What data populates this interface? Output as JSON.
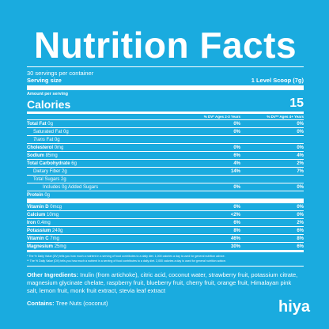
{
  "title": "Nutrition Facts",
  "servings_per_container": "30 servings per container",
  "serving_size_label": "Serving size",
  "serving_size_value": "1 Level Scoop (7g)",
  "amount_per_serving": "Amount per serving",
  "calories_label": "Calories",
  "calories_value": "15",
  "dv_col1_header": "% DV* Ages 2-3 Years",
  "dv_col2_header": "% DV** Ages 4+ Years",
  "nutrients": [
    {
      "name": "Total Fat",
      "amount": "0g",
      "dv1": "0%",
      "dv2": "0%"
    },
    {
      "name": "Saturated Fat",
      "amount": "0g",
      "dv1": "0%",
      "dv2": "0%"
    },
    {
      "name": "Trans",
      "amount": "Fat 0g",
      "dv1": "",
      "dv2": ""
    },
    {
      "name": "Cholesterol",
      "amount": "0mg",
      "dv1": "0%",
      "dv2": "0%"
    },
    {
      "name": "Sodium",
      "amount": "85mg",
      "dv1": "6%",
      "dv2": "4%"
    },
    {
      "name": "Total Carbohydrate",
      "amount": "6g",
      "dv1": "4%",
      "dv2": "2%"
    },
    {
      "name": "Dietary Fiber",
      "amount": "2g",
      "dv1": "14%",
      "dv2": "7%"
    },
    {
      "name": "Total Sugars",
      "amount": "2g",
      "dv1": "",
      "dv2": ""
    },
    {
      "name": "Includes",
      "amount": "0g Added Sugars",
      "dv1": "0%",
      "dv2": "0%"
    },
    {
      "name": "Protein",
      "amount": "0g",
      "dv1": "",
      "dv2": ""
    }
  ],
  "vitamins": [
    {
      "name": "Vitamin D",
      "amount": "0mcg",
      "dv1": "0%",
      "dv2": "0%"
    },
    {
      "name": "Calcium",
      "amount": "10mg",
      "dv1": "<2%",
      "dv2": "0%"
    },
    {
      "name": "Iron",
      "amount": "0.4mg",
      "dv1": "6%",
      "dv2": "2%"
    },
    {
      "name": "Potassium",
      "amount": "240g",
      "dv1": "8%",
      "dv2": "6%"
    },
    {
      "name": "Vitamin C",
      "amount": "7mg",
      "dv1": "46%",
      "dv2": "8%"
    },
    {
      "name": "Magnesium",
      "amount": "25mg",
      "dv1": "30%",
      "dv2": "6%"
    }
  ],
  "footnote1": "* The % Daily Value (DV) tells you how much a nutrient in a serving of food contributes to a daily diet. 1,000 calories a day is used for general nutrition advice.",
  "footnote2": "** The % Daily Value (DV) tells you how much a nutrient in a serving of food contributes to a daily diet. 2,000 calories a day is used for general nutrition advice.",
  "ingredients_label": "Other Ingredients:",
  "ingredients_text": "Inulin (from artichoke), citric acid, coconut water, strawberry fruit, potassium citrate, magnesium glycinate chelate, raspberry fruit, blueberry fruit, cherry fruit, orange fruit, Himalayan pink salt, lemon fruit, monk fruit extract, stevia leaf extract",
  "contains_label": "Contains:",
  "contains_text": "Tree Nuts (coconut)",
  "brand": "hiya"
}
